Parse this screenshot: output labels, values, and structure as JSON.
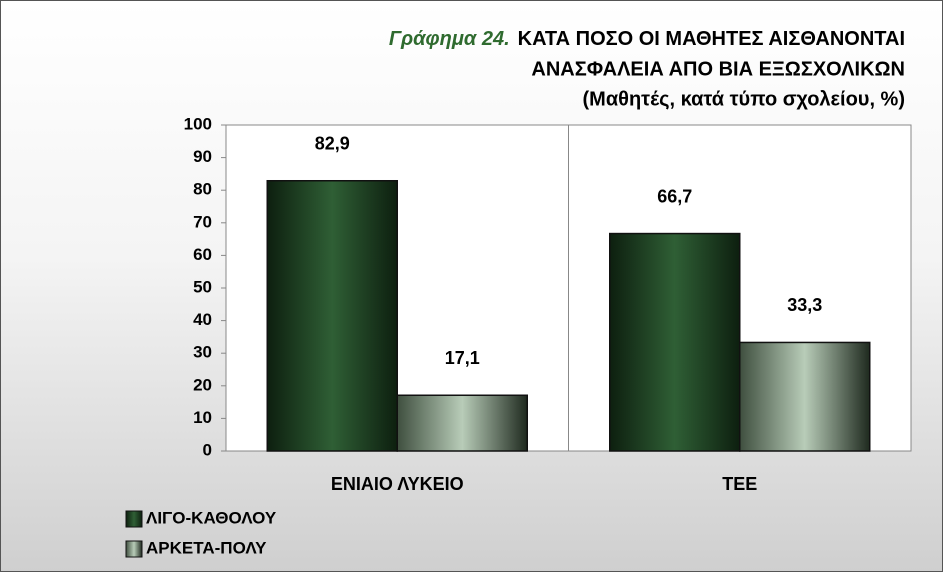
{
  "chart_data": {
    "type": "bar",
    "title_label": "Γράφημα 24.",
    "title": [
      "ΚΑΤΑ ΠΟΣΟ ΟΙ  ΜΑΘΗΤΕΣ ΑΙΣΘΑΝΟΝΤΑΙ",
      "ΑΝΑΣΦΑΛΕΙΑ ΑΠΟ ΒΙΑ ΕΞΩΣΧΟΛΙΚΩΝ"
    ],
    "subtitle": "(Μαθητές, κατά τύπο σχολείου,  %)",
    "categories": [
      "ΕΝΙΑΙΟ ΛΥΚΕΙΟ",
      "ΤΕΕ"
    ],
    "series": [
      {
        "name": "ΛΙΓΟ-ΚΑΘΟΛΟΥ",
        "color": "#2f5f35",
        "values": [
          82.9,
          66.7
        ],
        "value_labels": [
          "82,9",
          "66,7"
        ]
      },
      {
        "name": "ΑΡΚΕΤΑ-ΠΟΛΥ",
        "color": "#b8ccb8",
        "values": [
          17.1,
          33.3
        ],
        "value_labels": [
          "17,1",
          "33,3"
        ]
      }
    ],
    "ylim": [
      0,
      100
    ],
    "yticks": [
      0,
      10,
      20,
      30,
      40,
      50,
      60,
      70,
      80,
      90,
      100
    ],
    "legend": "bottom-left"
  }
}
